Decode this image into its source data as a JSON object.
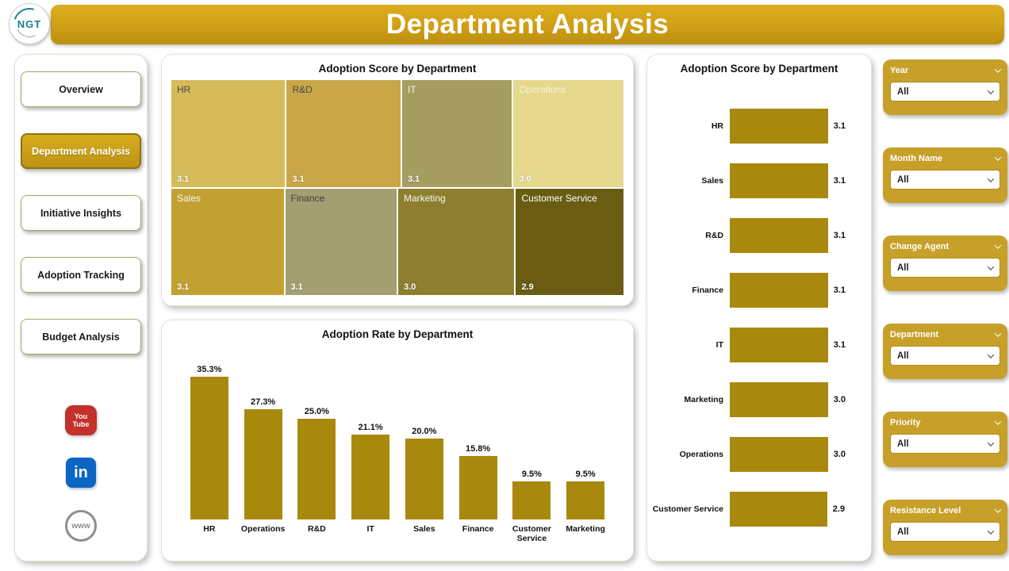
{
  "header": {
    "title": "Department Analysis",
    "logo": {
      "text": "NGT"
    }
  },
  "sidebar": {
    "items": [
      {
        "label": "Overview",
        "active": false
      },
      {
        "label": "Department Analysis",
        "active": true
      },
      {
        "label": "Initiative Insights",
        "active": false
      },
      {
        "label": "Adoption Tracking",
        "active": false
      },
      {
        "label": "Budget Analysis",
        "active": false
      }
    ],
    "social": [
      {
        "name": "youtube",
        "text_lines": [
          "You",
          "Tube"
        ],
        "color": "#c4302b"
      },
      {
        "name": "linkedin",
        "text_lines": [
          "in"
        ],
        "color": "#0a66c2"
      },
      {
        "name": "website",
        "text_lines": [
          "www"
        ],
        "color": "#8d8d8d"
      }
    ]
  },
  "filters": [
    {
      "label": "Year",
      "value": "All"
    },
    {
      "label": "Month Name",
      "value": "All"
    },
    {
      "label": "Change Agent",
      "value": "All"
    },
    {
      "label": "Department",
      "value": "All"
    },
    {
      "label": "Priority",
      "value": "All"
    },
    {
      "label": "Resistance Level",
      "value": "All"
    }
  ],
  "theme": {
    "header_gold": "#cf9f15",
    "filter_gold": "#c7a02a",
    "bar_gold": "#a8890e"
  },
  "chart_data": [
    {
      "type": "heatmap",
      "subtype": "treemap",
      "title": "Adoption Score by Department",
      "rows": [
        [
          {
            "label": "HR",
            "value": 3.1,
            "display": "3.1",
            "color": "#d5bb59",
            "label_color": "#4a4a4a",
            "flex": 145
          },
          {
            "label": "R&D",
            "value": 3.1,
            "display": "3.1",
            "color": "#c9a647",
            "label_color": "#4a4a4a",
            "flex": 145
          },
          {
            "label": "IT",
            "value": 3.1,
            "display": "3.1",
            "color": "#a69d61",
            "label_color": "#f5f5f5",
            "flex": 140
          },
          {
            "label": "Operations",
            "value": 3.0,
            "display": "3.0",
            "color": "#e6d88c",
            "label_color": "#f7f2da",
            "flex": 140
          }
        ],
        [
          {
            "label": "Sales",
            "value": 3.1,
            "display": "3.1",
            "color": "#c2a132",
            "label_color": "#f5f5f5",
            "flex": 143
          },
          {
            "label": "Finance",
            "value": 3.1,
            "display": "3.1",
            "color": "#a49e73",
            "label_color": "#3f3f3f",
            "flex": 142
          },
          {
            "label": "Marketing",
            "value": 3.0,
            "display": "3.0",
            "color": "#8d7f2f",
            "label_color": "#f5f5f5",
            "flex": 148
          },
          {
            "label": "Customer Service",
            "value": 2.9,
            "display": "2.9",
            "color": "#6a5c13",
            "label_color": "#ffffff",
            "flex": 137
          }
        ]
      ]
    },
    {
      "type": "bar",
      "title": "Adoption Rate by Department",
      "categories": [
        "HR",
        "Operations",
        "R&D",
        "IT",
        "Sales",
        "Finance",
        "Customer Service",
        "Marketing"
      ],
      "values": [
        35.3,
        27.3,
        25.0,
        21.1,
        20.0,
        15.8,
        9.5,
        9.5
      ],
      "labels": [
        "35.3%",
        "27.3%",
        "25.0%",
        "21.1%",
        "20.0%",
        "15.8%",
        "9.5%",
        "9.5%"
      ],
      "ylim": [
        0,
        38.5
      ],
      "bar_color": "#a8890e",
      "xlabel": "",
      "ylabel": ""
    },
    {
      "type": "bar",
      "subtype": "horizontal",
      "title": "Adoption Score by Department",
      "categories": [
        "HR",
        "Sales",
        "R&D",
        "Finance",
        "IT",
        "Marketing",
        "Operations",
        "Customer Service"
      ],
      "values": [
        3.1,
        3.1,
        3.1,
        3.1,
        3.1,
        3.0,
        3.0,
        2.9
      ],
      "labels": [
        "3.1",
        "3.1",
        "3.1",
        "3.1",
        "3.1",
        "3.0",
        "3.0",
        "2.9"
      ],
      "xlim": [
        0,
        3.45
      ],
      "bar_color": "#a8890e",
      "xlabel": "",
      "ylabel": ""
    }
  ]
}
